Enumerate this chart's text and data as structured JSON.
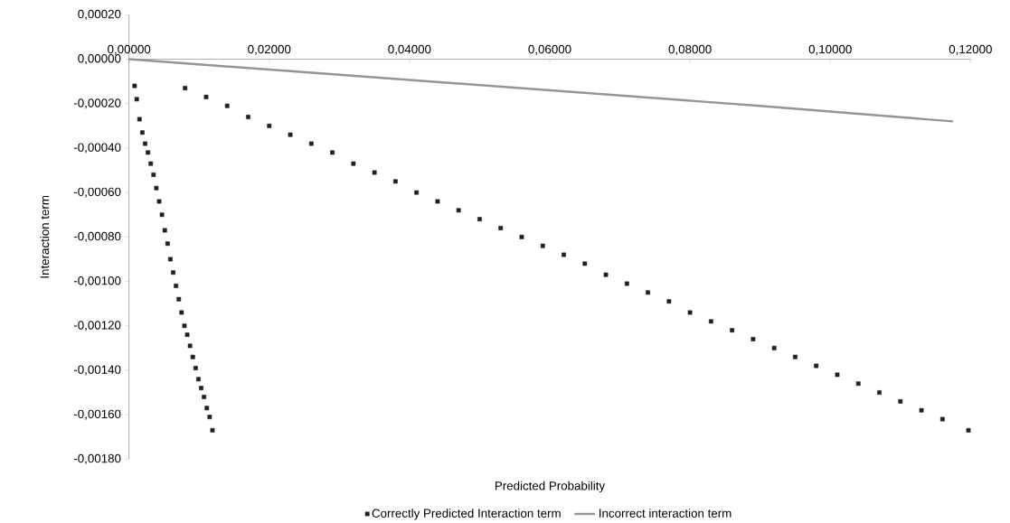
{
  "chart_data": {
    "type": "scatter",
    "xlabel": "Predicted Probability",
    "ylabel": "Interaction term",
    "xlim": [
      0,
      0.12
    ],
    "ylim": [
      -0.0018,
      0.0002
    ],
    "xticks": [
      {
        "value": 0,
        "label": "0,00000"
      },
      {
        "value": 0.02,
        "label": "0,02000"
      },
      {
        "value": 0.04,
        "label": "0,04000"
      },
      {
        "value": 0.06,
        "label": "0,06000"
      },
      {
        "value": 0.08,
        "label": "0,08000"
      },
      {
        "value": 0.1,
        "label": "0,10000"
      },
      {
        "value": 0.12,
        "label": "0,12000"
      }
    ],
    "yticks": [
      {
        "value": 0.0002,
        "label": "0,00020"
      },
      {
        "value": 0,
        "label": "0,00000"
      },
      {
        "value": -0.0002,
        "label": "-0,00020"
      },
      {
        "value": -0.0004,
        "label": "-0,00040"
      },
      {
        "value": -0.0006,
        "label": "-0,00060"
      },
      {
        "value": -0.0008,
        "label": "-0,00080"
      },
      {
        "value": -0.001,
        "label": "-0,00100"
      },
      {
        "value": -0.0012,
        "label": "-0,00120"
      },
      {
        "value": -0.0014,
        "label": "-0,00140"
      },
      {
        "value": -0.0016,
        "label": "-0,00160"
      },
      {
        "value": -0.0018,
        "label": "-0,00180"
      }
    ],
    "legend": "bottom",
    "grid": false,
    "series": [
      {
        "name": "Correctly Predicted Interaction term",
        "color": "#231f20",
        "marker": "square",
        "x": [
          0.0008,
          0.0011,
          0.0015,
          0.0019,
          0.0023,
          0.0027,
          0.0031,
          0.0035,
          0.0039,
          0.0043,
          0.0047,
          0.0051,
          0.0055,
          0.0059,
          0.0063,
          0.0067,
          0.0071,
          0.0075,
          0.0079,
          0.0083,
          0.0087,
          0.0091,
          0.0095,
          0.0099,
          0.0103,
          0.0107,
          0.0111,
          0.0115,
          0.0119,
          0.008,
          0.011,
          0.014,
          0.017,
          0.02,
          0.023,
          0.026,
          0.029,
          0.032,
          0.035,
          0.038,
          0.041,
          0.044,
          0.047,
          0.05,
          0.053,
          0.056,
          0.059,
          0.062,
          0.065,
          0.068,
          0.071,
          0.074,
          0.077,
          0.08,
          0.083,
          0.086,
          0.089,
          0.092,
          0.095,
          0.098,
          0.101,
          0.104,
          0.107,
          0.11,
          0.113,
          0.116,
          0.1197
        ],
        "values": [
          -0.00012,
          -0.00018,
          -0.00027,
          -0.00033,
          -0.00038,
          -0.00042,
          -0.00047,
          -0.00052,
          -0.00058,
          -0.00064,
          -0.0007,
          -0.00077,
          -0.00083,
          -0.0009,
          -0.00096,
          -0.00102,
          -0.00108,
          -0.00114,
          -0.0012,
          -0.00124,
          -0.00129,
          -0.00134,
          -0.00139,
          -0.00144,
          -0.00148,
          -0.00152,
          -0.00157,
          -0.00161,
          -0.00167,
          -0.00013,
          -0.00017,
          -0.00021,
          -0.00026,
          -0.0003,
          -0.00034,
          -0.00038,
          -0.00042,
          -0.00047,
          -0.00051,
          -0.00055,
          -0.0006,
          -0.00064,
          -0.00068,
          -0.00072,
          -0.00076,
          -0.0008,
          -0.00084,
          -0.00088,
          -0.00092,
          -0.00097,
          -0.00101,
          -0.00105,
          -0.00109,
          -0.00114,
          -0.00118,
          -0.00122,
          -0.00126,
          -0.0013,
          -0.00134,
          -0.00138,
          -0.00142,
          -0.00146,
          -0.0015,
          -0.00154,
          -0.00158,
          -0.00162,
          -0.00167
        ]
      },
      {
        "name": "Incorrect interaction term",
        "type": "line",
        "color": "#939598",
        "marker": "none",
        "x": [
          0,
          0.03,
          0.06,
          0.09,
          0.1175
        ],
        "values": [
          0,
          -7e-05,
          -0.00014,
          -0.00021,
          -0.00028
        ]
      }
    ]
  }
}
